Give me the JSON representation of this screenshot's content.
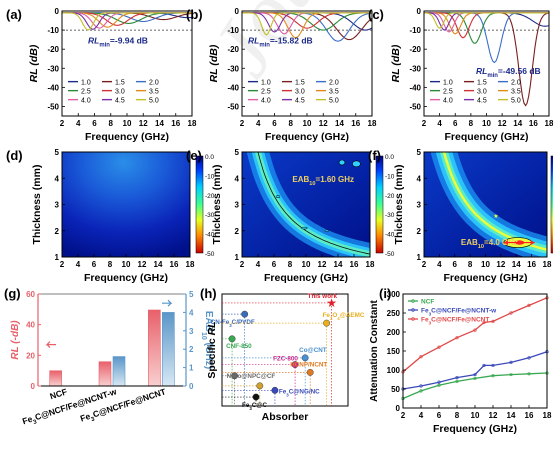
{
  "figure": {
    "watermark": "Journal Pre-proof"
  },
  "rl_panels": [
    {
      "label": "(a)",
      "ylabel": "RL (dB)",
      "xlabel": "Frequency (GHz)",
      "xlim": [
        2,
        18
      ],
      "ylim": [
        -55,
        0
      ],
      "yticks": [
        0,
        -10,
        -20,
        -30,
        -40,
        -50
      ],
      "xticks": [
        2,
        4,
        6,
        8,
        10,
        12,
        14,
        16,
        18
      ],
      "annotation_prefix": "RL",
      "annotation_sub": "min",
      "annotation_value": "=-9.94 dB",
      "legend": [
        "1.0",
        "1.5",
        "2.0",
        "2.5",
        "3.0",
        "3.5",
        "4.0",
        "4.5",
        "5.0"
      ],
      "minima_freq": [
        17.5,
        14.5,
        12.0,
        10.2,
        8.8,
        7.6,
        6.6,
        5.8,
        5.2
      ],
      "minima_depth": [
        -3.5,
        -4.5,
        -5.5,
        -6.5,
        -7.5,
        -8.5,
        -9.0,
        -9.6,
        -9.94
      ]
    },
    {
      "label": "(b)",
      "ylabel": "RL (dB)",
      "xlabel": "Frequency (GHz)",
      "xlim": [
        2,
        18
      ],
      "ylim": [
        -55,
        0
      ],
      "yticks": [
        0,
        -10,
        -20,
        -30,
        -40,
        -50
      ],
      "xticks": [
        2,
        4,
        6,
        8,
        10,
        12,
        14,
        16,
        18
      ],
      "annotation_prefix": "RL",
      "annotation_sub": "min",
      "annotation_value": "=-15.82 dB",
      "legend": [
        "1.0",
        "1.5",
        "2.0",
        "2.5",
        "3.0",
        "3.5",
        "4.0",
        "4.5",
        "5.0"
      ],
      "minima_freq": [
        17.2,
        15.2,
        13.8,
        12.0,
        10.0,
        8.6,
        7.2,
        6.0,
        5.0
      ],
      "minima_depth": [
        -10.0,
        -15.0,
        -15.82,
        -10.0,
        -9.0,
        -14.0,
        -12.0,
        -11.0,
        -12.5
      ]
    },
    {
      "label": "(c)",
      "ylabel": "RL (dB)",
      "xlabel": "Frequency (GHz)",
      "xlim": [
        2,
        18
      ],
      "ylim": [
        -55,
        0
      ],
      "yticks": [
        0,
        -10,
        -20,
        -30,
        -40,
        -50
      ],
      "xticks": [
        2,
        4,
        6,
        8,
        10,
        12,
        14,
        16,
        18
      ],
      "annotation_prefix": "RL",
      "annotation_sub": "min",
      "annotation_value": "=-49.56 dB",
      "legend": [
        "1.0",
        "1.5",
        "2.0",
        "2.5",
        "3.0",
        "3.5",
        "4.0",
        "4.5",
        "5.0"
      ],
      "minima_freq": [
        17.5,
        15.0,
        11.0,
        8.5,
        7.0,
        6.0,
        5.2,
        4.6,
        4.0
      ],
      "minima_depth": [
        -8.0,
        -49.56,
        -27.0,
        -17.0,
        -14.0,
        -12.0,
        -11.0,
        -10.0,
        -9.0
      ]
    }
  ],
  "rl_line_colors": [
    "#1b2a8a",
    "#7a1f1f",
    "#3b6ec9",
    "#2a8a3a",
    "#d03030",
    "#e28a1a",
    "#e05fa5",
    "#7a2fa6",
    "#c0c02a"
  ],
  "contour_panels": [
    {
      "label": "(d)",
      "ylabel": "Thickness (mm)",
      "xlabel": "Frequency (GHz)",
      "xticks": [
        2,
        4,
        6,
        8,
        10,
        12,
        14,
        16,
        18
      ],
      "yticks": [
        1,
        2,
        3,
        4,
        5
      ],
      "colorbar_ticks": [
        "0.0",
        "-10",
        "-20",
        "-30",
        "-40",
        "-50"
      ],
      "eab_prefix": "",
      "eab_sub": "",
      "eab_value": ""
    },
    {
      "label": "(e)",
      "ylabel": "Thickness (mm)",
      "xlabel": "Frequency (GHz)",
      "xticks": [
        2,
        4,
        6,
        8,
        10,
        12,
        14,
        16,
        18
      ],
      "yticks": [
        1,
        2,
        3,
        4,
        5
      ],
      "colorbar_ticks": [
        "0.0",
        "-10",
        "-20",
        "-30",
        "-40",
        "-50"
      ],
      "eab_prefix": "EAB",
      "eab_sub": "10",
      "eab_value": "=1.60 GHz"
    },
    {
      "label": "(f)",
      "ylabel": "Thickness (mm)",
      "xlabel": "Frequency (GHz)",
      "xticks": [
        2,
        4,
        6,
        8,
        10,
        12,
        14,
        16,
        18
      ],
      "yticks": [
        1,
        2,
        3,
        4,
        5
      ],
      "colorbar_ticks": [
        "0.0",
        "-10",
        "-20",
        "-30",
        "-40",
        "-50"
      ],
      "eab_prefix": "EAB",
      "eab_sub": "10",
      "eab_value": "=4.0 GHz"
    }
  ],
  "chart_data": [
    {
      "type": "bar",
      "panel": "(g)",
      "categories": [
        "NCF",
        "Fe3C@NCF/Fe@NCNT-w",
        "Fe3C@NCF/Fe@NCNT"
      ],
      "category_labels": [
        {
          "main": "NCF",
          "sub": "",
          "rest": ""
        },
        {
          "main": "Fe",
          "sub": "3",
          "rest": "C@NCF/Fe@NCNT-w"
        },
        {
          "main": "Fe",
          "sub": "3",
          "rest": "C@NCF/Fe@NCNT"
        }
      ],
      "ylabel": "RL (-dB)",
      "y2label": "EAB10 (GHz)",
      "ylim": [
        0,
        60
      ],
      "y2lim": [
        0,
        5
      ],
      "yticks": [
        0,
        20,
        40,
        60
      ],
      "y2ticks": [
        0,
        1,
        2,
        3,
        4,
        5
      ],
      "series": [
        {
          "name": "RL (-dB)",
          "values": [
            9.94,
            15.82,
            49.56
          ],
          "color": "#e8606a"
        },
        {
          "name": "EAB10 (GHz)",
          "values": [
            0,
            1.6,
            4.0
          ],
          "color": "#5a96c8"
        }
      ]
    },
    {
      "type": "scatter",
      "panel": "(h)",
      "xlabel": "Absorber",
      "ylabel": "Specific RL",
      "points": [
        {
          "name": "This work",
          "color": "#e0202a",
          "marker": "star",
          "xrel": 0.87,
          "yrel": 0.92
        },
        {
          "name": "CN-Fe3C/PVDF",
          "color": "#3a6ab8",
          "xrel": 0.18,
          "yrel": 0.82
        },
        {
          "name": "Fe3O4@AEMC",
          "color": "#e8b020",
          "xrel": 0.83,
          "yrel": 0.74
        },
        {
          "name": "CNF-850",
          "color": "#3aa850",
          "xrel": 0.08,
          "yrel": 0.6
        },
        {
          "name": "Co@CNT",
          "color": "#4a90d0",
          "xrel": 0.66,
          "yrel": 0.43
        },
        {
          "name": "FZC-800",
          "color": "#d02a8a",
          "xrel": 0.58,
          "yrel": 0.37
        },
        {
          "name": "NiCo@NPC@CF",
          "color": "#6a6a6a",
          "xrel": 0.1,
          "yrel": 0.27
        },
        {
          "name": "HCNP/NCNT",
          "color": "#e07a20",
          "xrel": 0.7,
          "yrel": 0.3
        },
        {
          "name": "Fe3C@NG/NC",
          "color": "#3a4ab8",
          "xrel": 0.42,
          "yrel": 0.14
        },
        {
          "name": "Fe3C@C",
          "color": "#111111",
          "xrel": 0.27,
          "yrel": 0.08
        },
        {
          "name": "",
          "color": "#d0a030",
          "xrel": 0.3,
          "yrel": 0.18
        }
      ]
    },
    {
      "type": "line",
      "panel": "(i)",
      "xlabel": "Frequency (GHz)",
      "ylabel": "Attenuation Constant",
      "xlim": [
        2,
        18
      ],
      "ylim": [
        0,
        300
      ],
      "xticks": [
        2,
        4,
        6,
        8,
        10,
        12,
        14,
        16,
        18
      ],
      "yticks": [
        0,
        50,
        100,
        150,
        200,
        250,
        300
      ],
      "series": [
        {
          "name": "NCF",
          "color": "#3aa850",
          "x": [
            2,
            4,
            6,
            8,
            10,
            12,
            14,
            16,
            18
          ],
          "values": [
            25,
            45,
            60,
            70,
            78,
            85,
            88,
            90,
            92
          ]
        },
        {
          "name": "Fe3C@NCF/Fe@NCNT-w",
          "color": "#3a4ab8",
          "x": [
            2,
            4,
            6,
            8,
            10,
            11,
            12,
            14,
            16,
            18
          ],
          "values": [
            50,
            58,
            68,
            80,
            88,
            112,
            112,
            120,
            132,
            148
          ]
        },
        {
          "name": "Fe3C@NCF/Fe@NCNT",
          "color": "#e04848",
          "x": [
            2,
            4,
            6,
            8,
            10,
            11,
            12,
            14,
            16,
            18
          ],
          "values": [
            95,
            135,
            160,
            185,
            205,
            225,
            228,
            250,
            270,
            290
          ]
        }
      ]
    }
  ]
}
